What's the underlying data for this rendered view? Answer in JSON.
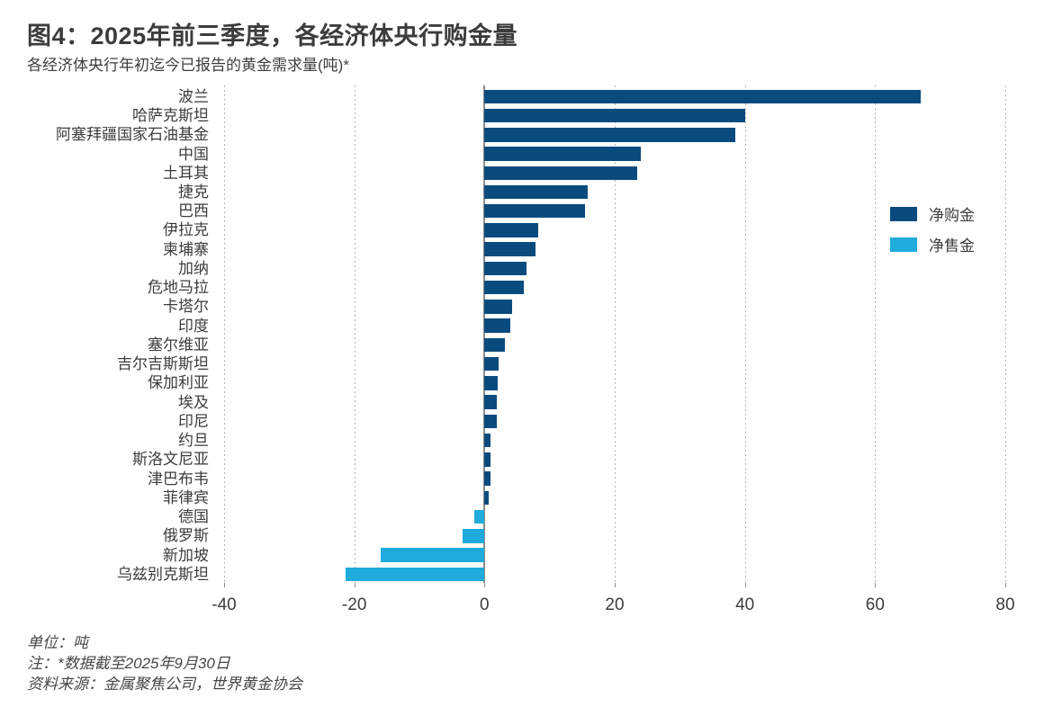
{
  "chart_data": {
    "type": "bar",
    "orientation": "horizontal",
    "title": "图4：2025年前三季度，各经济体央行购金量",
    "subtitle": "各经济体央行年初迄今已报告的黄金需求量(吨)*",
    "unit": "吨",
    "categories": [
      "波兰",
      "哈萨克斯坦",
      "阿塞拜疆国家石油基金",
      "中国",
      "土耳其",
      "捷克",
      "巴西",
      "伊拉克",
      "柬埔寨",
      "加纳",
      "危地马拉",
      "卡塔尔",
      "印度",
      "塞尔维亚",
      "吉尔吉斯斯坦",
      "保加利亚",
      "埃及",
      "印尼",
      "约旦",
      "斯洛文尼亚",
      "津巴布韦",
      "菲律宾",
      "德国",
      "俄罗斯",
      "新加坡",
      "乌兹别克斯坦"
    ],
    "values": [
      67,
      40,
      38.5,
      24,
      23.5,
      15.8,
      15.5,
      8.2,
      7.9,
      6.5,
      6.1,
      4.3,
      3.9,
      3.2,
      2.1,
      2.0,
      1.9,
      1.9,
      0.9,
      0.9,
      0.9,
      0.7,
      -1.6,
      -3.3,
      -16,
      -21.3
    ],
    "xlim": [
      -40,
      80
    ],
    "xticks": [
      -40,
      -20,
      0,
      20,
      40,
      60,
      80
    ],
    "grid": "vertical-dotted",
    "legend_position": "upper-right",
    "legend": [
      {
        "label": "净购金",
        "color": "#0a4b7e"
      },
      {
        "label": "净售金",
        "color": "#1fabdc"
      }
    ],
    "colors": {
      "net_purchase": "#0a4b7e",
      "net_sale": "#1fabdc",
      "gridline": "#b3b3b3",
      "zero_line": "#8c8c8c",
      "text": "#3c3c3c"
    }
  },
  "footer": {
    "unit": "单位：吨",
    "note": "注：*数据截至2025年9月30日",
    "source": "资料来源：金属聚焦公司，世界黄金协会"
  }
}
